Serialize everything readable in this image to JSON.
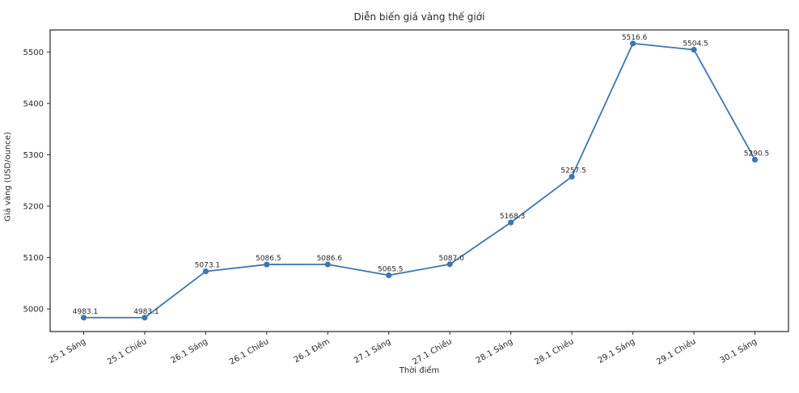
{
  "chart_data": {
    "type": "line",
    "title": "Diễn biến giá vàng thế giới",
    "xlabel": "Thời điểm",
    "ylabel": "Giá vàng (USD/ounce)",
    "categories": [
      "25.1 Sáng",
      "25.1 Chiều",
      "26.1 Sáng",
      "26.1 Chiều",
      "26.1 Đêm",
      "27.1 Sáng",
      "27.1 Chiều",
      "28.1 Sáng",
      "28.1 Chiều",
      "29.1 Sáng",
      "29.1 Chiều",
      "30.1 Sáng"
    ],
    "values": [
      4983.1,
      4983.1,
      5073.1,
      5086.5,
      5086.6,
      5065.5,
      5087.0,
      5168.3,
      5257.5,
      5516.6,
      5504.5,
      5290.5
    ],
    "value_labels": [
      "4983.1",
      "4983.1",
      "5073.1",
      "5086.5",
      "5086.6",
      "5065.5",
      "5087.0",
      "5168.3",
      "5257.5",
      "5516.6",
      "5504.5",
      "5290.5"
    ],
    "ylim": [
      4956,
      5543
    ],
    "yticks": [
      5000,
      5100,
      5200,
      5300,
      5400,
      5500
    ],
    "grid": false,
    "legend": "none",
    "line_color": "#3c76af",
    "marker": "circle",
    "axis_color": "#262626"
  }
}
